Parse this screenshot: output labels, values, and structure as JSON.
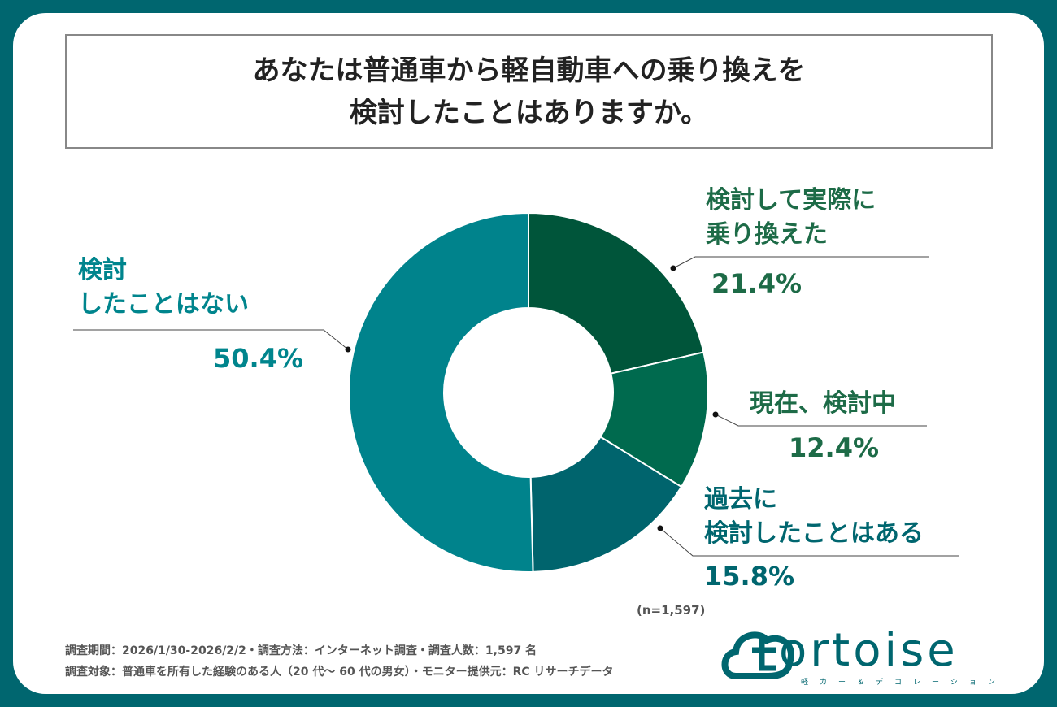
{
  "title": {
    "line1": "あなたは普通車から軽自動車への乗り換えを",
    "line2": "検討したことはありますか。"
  },
  "chart_data": {
    "type": "pie",
    "variant": "donut",
    "categories": [
      "検討して実際に乗り換えた",
      "現在、検討中",
      "過去に検討したことはある",
      "検討したことはない"
    ],
    "values": [
      21.4,
      12.4,
      15.8,
      50.4
    ],
    "value_labels": [
      "21.4%",
      "12.4%",
      "15.8%",
      "50.4%"
    ],
    "label_lines": [
      [
        "検討して実際に",
        "乗り換えた"
      ],
      [
        "現在、検討中"
      ],
      [
        "過去に",
        "検討したことはある"
      ],
      [
        "検討",
        "したことはない"
      ]
    ],
    "colors": [
      "#00553a",
      "#006a4e",
      "#00646d",
      "#00838c"
    ],
    "label_colors": [
      "#1d6b47",
      "#1d6b47",
      "#00666f",
      "#00858d"
    ],
    "start": "top",
    "direction": "clockwise"
  },
  "sample_size": "(n=1,597)",
  "footer": {
    "line1": "調査期間：2026/1/30-2026/2/2・調査方法：インターネット調査・調査人数：1,597 名",
    "line2": "調査対象：普通車を所有した経験のある人（20 代～ 60 代の男女）・モニター提供元：RC リサーチデータ"
  },
  "logo": {
    "text": "ortoise",
    "sub": "軽カー＆デコレーション",
    "brand": "tortoise"
  }
}
